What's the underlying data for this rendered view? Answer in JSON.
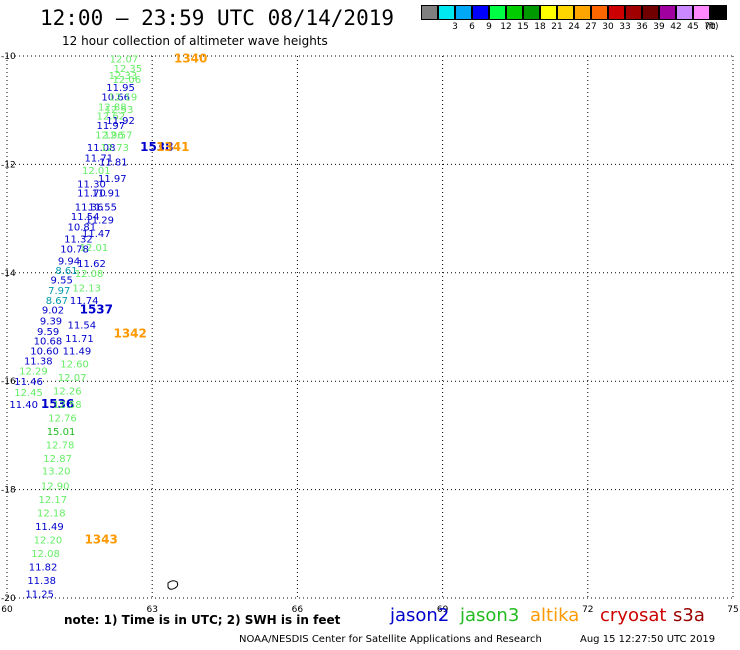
{
  "header": {
    "title": "12:00 – 23:59 UTC 08/14/2019",
    "subtitle": "12 hour collection of altimeter wave heights"
  },
  "legend": {
    "unit": "(ft)",
    "bins": [
      {
        "label": "",
        "color": "#808080"
      },
      {
        "label": "3",
        "color": "#00e8f0"
      },
      {
        "label": "6",
        "color": "#00a8f8"
      },
      {
        "label": "9",
        "color": "#0000ff"
      },
      {
        "label": "12",
        "color": "#00ff44"
      },
      {
        "label": "15",
        "color": "#00cc00"
      },
      {
        "label": "18",
        "color": "#009900"
      },
      {
        "label": "21",
        "color": "#ffff00"
      },
      {
        "label": "24",
        "color": "#ffd700"
      },
      {
        "label": "27",
        "color": "#ffa500"
      },
      {
        "label": "30",
        "color": "#ff6600"
      },
      {
        "label": "33",
        "color": "#cc0000"
      },
      {
        "label": "36",
        "color": "#a00000"
      },
      {
        "label": "39",
        "color": "#700000"
      },
      {
        "label": "42",
        "color": "#a000a0"
      },
      {
        "label": "45",
        "color": "#cc88ff"
      },
      {
        "label": "70",
        "color": "#ff88ff"
      },
      {
        "label": "",
        "color": "#000000"
      }
    ]
  },
  "axes": {
    "x_ticks": [
      "60",
      "63",
      "66",
      "69",
      "72",
      "75"
    ],
    "y_ticks": [
      "-10",
      "-12",
      "-14",
      "-16",
      "-18",
      "-20"
    ]
  },
  "colors": {
    "jason2": "#0000cc",
    "jason3": "#22bb22",
    "altika": "#ff9900",
    "cryosat": "#cc0000",
    "s3a": "#990000",
    "light": "#66ee66",
    "teal": "#0099aa"
  },
  "labels": [
    {
      "t": "12.07",
      "lon": 62.12,
      "lat": -10.05,
      "c": "light"
    },
    {
      "t": "1340",
      "lon": 63.45,
      "lat": -10.05,
      "c": "altika",
      "big": true
    },
    {
      "t": "12.35",
      "lon": 62.2,
      "lat": -10.22,
      "c": "light"
    },
    {
      "t": "12.33",
      "lon": 62.1,
      "lat": -10.35,
      "c": "light"
    },
    {
      "t": "12.06",
      "lon": 62.18,
      "lat": -10.42,
      "c": "light"
    },
    {
      "t": "11.95",
      "lon": 62.05,
      "lat": -10.57,
      "c": "jason2"
    },
    {
      "t": "10.66",
      "lon": 61.95,
      "lat": -10.75,
      "c": "jason2"
    },
    {
      "t": "12.19",
      "lon": 62.1,
      "lat": -10.75,
      "c": "light"
    },
    {
      "t": "12.88",
      "lon": 61.88,
      "lat": -10.93,
      "c": "light"
    },
    {
      "t": "12.53",
      "lon": 62.02,
      "lat": -10.98,
      "c": "light"
    },
    {
      "t": "12.62",
      "lon": 61.85,
      "lat": -11.1,
      "c": "light"
    },
    {
      "t": "11.92",
      "lon": 62.05,
      "lat": -11.18,
      "c": "jason2"
    },
    {
      "t": "11.97",
      "lon": 61.85,
      "lat": -11.27,
      "c": "jason2"
    },
    {
      "t": "12.96",
      "lon": 61.82,
      "lat": -11.45,
      "c": "light"
    },
    {
      "t": "12.57",
      "lon": 62.0,
      "lat": -11.45,
      "c": "light"
    },
    {
      "t": "11.08",
      "lon": 61.65,
      "lat": -11.68,
      "c": "jason2"
    },
    {
      "t": "12.73",
      "lon": 61.93,
      "lat": -11.68,
      "c": "light"
    },
    {
      "t": "1538",
      "lon": 62.75,
      "lat": -11.68,
      "c": "jason2",
      "big": true
    },
    {
      "t": "1341",
      "lon": 63.08,
      "lat": -11.68,
      "c": "altika",
      "big": true
    },
    {
      "t": "11.71",
      "lon": 61.6,
      "lat": -11.87,
      "c": "jason2"
    },
    {
      "t": "11.81",
      "lon": 61.9,
      "lat": -11.95,
      "c": "jason2"
    },
    {
      "t": "12.01",
      "lon": 61.55,
      "lat": -12.1,
      "c": "light"
    },
    {
      "t": "11.97",
      "lon": 61.88,
      "lat": -12.25,
      "c": "jason2"
    },
    {
      "t": "11.30",
      "lon": 61.45,
      "lat": -12.35,
      "c": "jason2"
    },
    {
      "t": "11.70",
      "lon": 61.45,
      "lat": -12.52,
      "c": "jason2"
    },
    {
      "t": "11.91",
      "lon": 61.75,
      "lat": -12.52,
      "c": "jason2"
    },
    {
      "t": "11.36",
      "lon": 61.4,
      "lat": -12.78,
      "c": "jason2"
    },
    {
      "t": "11.55",
      "lon": 61.68,
      "lat": -12.78,
      "c": "jason2"
    },
    {
      "t": "11.54",
      "lon": 61.32,
      "lat": -12.95,
      "c": "jason2"
    },
    {
      "t": "11.29",
      "lon": 61.62,
      "lat": -13.02,
      "c": "jason2"
    },
    {
      "t": "10.81",
      "lon": 61.25,
      "lat": -13.15,
      "c": "jason2"
    },
    {
      "t": "11.47",
      "lon": 61.55,
      "lat": -13.27,
      "c": "jason2"
    },
    {
      "t": "11.32",
      "lon": 61.18,
      "lat": -13.37,
      "c": "jason2"
    },
    {
      "t": "12.01",
      "lon": 61.5,
      "lat": -13.52,
      "c": "light"
    },
    {
      "t": "10.78",
      "lon": 61.1,
      "lat": -13.55,
      "c": "jason2"
    },
    {
      "t": "9.94",
      "lon": 61.05,
      "lat": -13.77,
      "c": "jason2"
    },
    {
      "t": "11.62",
      "lon": 61.45,
      "lat": -13.82,
      "c": "jason2"
    },
    {
      "t": "8.61",
      "lon": 61.0,
      "lat": -13.95,
      "c": "teal"
    },
    {
      "t": "12.08",
      "lon": 61.4,
      "lat": -14.0,
      "c": "light"
    },
    {
      "t": "9.55",
      "lon": 60.9,
      "lat": -14.12,
      "c": "jason2"
    },
    {
      "t": "12.13",
      "lon": 61.35,
      "lat": -14.27,
      "c": "light"
    },
    {
      "t": "7.97",
      "lon": 60.85,
      "lat": -14.32,
      "c": "teal"
    },
    {
      "t": "8.67",
      "lon": 60.8,
      "lat": -14.5,
      "c": "teal"
    },
    {
      "t": "11.74",
      "lon": 61.3,
      "lat": -14.5,
      "c": "jason2"
    },
    {
      "t": "9.02",
      "lon": 60.72,
      "lat": -14.68,
      "c": "jason2"
    },
    {
      "t": "1537",
      "lon": 61.5,
      "lat": -14.68,
      "c": "jason2",
      "big": true
    },
    {
      "t": "9.39",
      "lon": 60.68,
      "lat": -14.88,
      "c": "jason2"
    },
    {
      "t": "11.54",
      "lon": 61.25,
      "lat": -14.95,
      "c": "jason2"
    },
    {
      "t": "9.59",
      "lon": 60.62,
      "lat": -15.07,
      "c": "jason2"
    },
    {
      "t": "1342",
      "lon": 62.2,
      "lat": -15.12,
      "c": "altika",
      "big": true
    },
    {
      "t": "10.68",
      "lon": 60.55,
      "lat": -15.25,
      "c": "jason2"
    },
    {
      "t": "11.71",
      "lon": 61.2,
      "lat": -15.2,
      "c": "jason2"
    },
    {
      "t": "10.60",
      "lon": 60.48,
      "lat": -15.43,
      "c": "jason2"
    },
    {
      "t": "11.49",
      "lon": 61.15,
      "lat": -15.43,
      "c": "jason2"
    },
    {
      "t": "11.38",
      "lon": 60.35,
      "lat": -15.62,
      "c": "jason2"
    },
    {
      "t": "12.60",
      "lon": 61.1,
      "lat": -15.67,
      "c": "light"
    },
    {
      "t": "12.29",
      "lon": 60.25,
      "lat": -15.8,
      "c": "light"
    },
    {
      "t": "12.07",
      "lon": 61.05,
      "lat": -15.92,
      "c": "light"
    },
    {
      "t": "11.46",
      "lon": 60.15,
      "lat": -16.0,
      "c": "jason2"
    },
    {
      "t": "12.45",
      "lon": 60.15,
      "lat": -16.2,
      "c": "light"
    },
    {
      "t": "12.26",
      "lon": 60.95,
      "lat": -16.17,
      "c": "light"
    },
    {
      "t": "11.40",
      "lon": 60.05,
      "lat": -16.42,
      "c": "jason2"
    },
    {
      "t": "1536",
      "lon": 60.7,
      "lat": -16.42,
      "c": "jason2",
      "big": true
    },
    {
      "t": "12.58",
      "lon": 60.95,
      "lat": -16.42,
      "c": "light"
    },
    {
      "t": "12.76",
      "lon": 60.85,
      "lat": -16.67,
      "c": "light"
    },
    {
      "t": "15.01",
      "lon": 60.82,
      "lat": -16.92,
      "c": "jason3"
    },
    {
      "t": "12.78",
      "lon": 60.8,
      "lat": -17.17,
      "c": "light"
    },
    {
      "t": "12.87",
      "lon": 60.75,
      "lat": -17.42,
      "c": "light"
    },
    {
      "t": "13.20",
      "lon": 60.72,
      "lat": -17.65,
      "c": "light"
    },
    {
      "t": "12.90",
      "lon": 60.7,
      "lat": -17.92,
      "c": "light"
    },
    {
      "t": "12.17",
      "lon": 60.65,
      "lat": -18.17,
      "c": "light"
    },
    {
      "t": "12.18",
      "lon": 60.62,
      "lat": -18.42,
      "c": "light"
    },
    {
      "t": "11.49",
      "lon": 60.58,
      "lat": -18.67,
      "c": "jason2"
    },
    {
      "t": "12.20",
      "lon": 60.55,
      "lat": -18.92,
      "c": "light"
    },
    {
      "t": "1343",
      "lon": 61.6,
      "lat": -18.92,
      "c": "altika",
      "big": true
    },
    {
      "t": "12.08",
      "lon": 60.5,
      "lat": -19.17,
      "c": "light"
    },
    {
      "t": "11.82",
      "lon": 60.45,
      "lat": -19.42,
      "c": "jason2"
    },
    {
      "t": "11.38",
      "lon": 60.42,
      "lat": -19.67,
      "c": "jason2"
    },
    {
      "t": "11.25",
      "lon": 60.38,
      "lat": -19.92,
      "c": "jason2"
    }
  ],
  "footer": {
    "note": "note: 1) Time is in UTC; 2) SWH is in feet",
    "sats": [
      {
        "name": "jason2",
        "key": "jason2"
      },
      {
        "name": "jason3",
        "key": "jason3"
      },
      {
        "name": "altika",
        "key": "altika"
      },
      {
        "name": "cryosat",
        "key": "cryosat"
      },
      {
        "name": "s3a",
        "key": "s3a"
      }
    ],
    "credit": "NOAA/NESDIS Center for Satellite Applications and Research",
    "timestamp": "Aug 15 12:27:50 UTC 2019"
  }
}
